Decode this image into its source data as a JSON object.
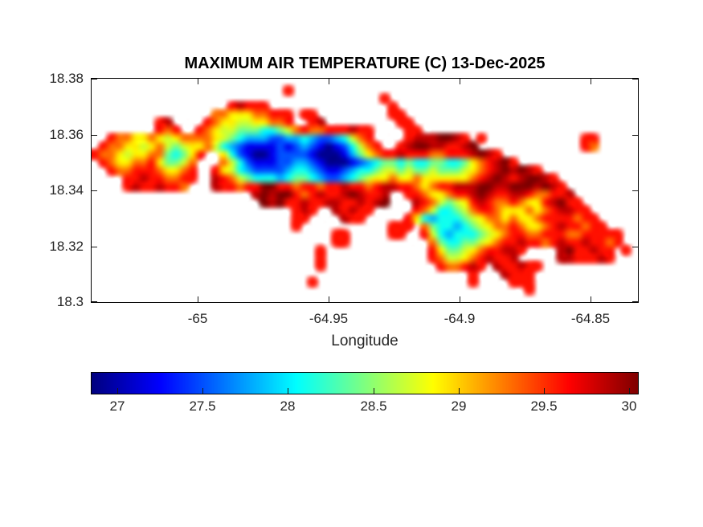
{
  "figure": {
    "background": "#ffffff",
    "box_color": "#000000",
    "tick_color": "#1a1a1a",
    "label_color": "#262626"
  },
  "chart_data": {
    "type": "heatmap",
    "title": "MAXIMUM AIR TEMPERATURE (C) 13-Dec-2025",
    "xlabel": "Longitude",
    "ylabel": "",
    "xlim": [
      -65.0405,
      -64.8319
    ],
    "ylim": [
      18.3,
      18.38
    ],
    "xticks": {
      "values": [
        -65,
        -64.95,
        -64.9,
        -64.85
      ],
      "labels": [
        "-65",
        "-64.95",
        "-64.9",
        "-64.85"
      ]
    },
    "yticks": {
      "values": [
        18.38,
        18.36,
        18.34,
        18.32,
        18.3
      ],
      "labels": [
        "18.38",
        "18.36",
        "18.34",
        "18.32",
        "18.3"
      ]
    },
    "grid_lines": false,
    "colormap": "jet",
    "caxis": [
      26.85,
      30.05
    ],
    "units": "C",
    "colorbar": {
      "orientation": "horizontal",
      "tick_values": [
        27,
        27.5,
        28,
        28.5,
        29,
        29.5,
        30
      ],
      "tick_labels": [
        "27",
        "27.5",
        "28",
        "28.5",
        "29",
        "29.5",
        "30"
      ]
    },
    "grid_cols": 68,
    "grid_rows": 28,
    "ocean_char": ".",
    "value_key": {
      "0": 26.9,
      "1": 27.2,
      "2": 27.5,
      "3": 27.8,
      "4": 28.1,
      "5": 28.4,
      "6": 28.7,
      "7": 28.9,
      "8": 29.3,
      "9": 29.6,
      "A": 29.85,
      "B": 30.05
    },
    "grid_segments": [
      [],
      [
        [
          24,
          "9"
        ]
      ],
      [
        [
          36,
          "9"
        ]
      ],
      [
        [
          17,
          "9A999"
        ],
        [
          37,
          "9"
        ]
      ],
      [
        [
          15,
          "8877788999"
        ],
        [
          26,
          "99"
        ],
        [
          37,
          "99"
        ]
      ],
      [
        [
          8,
          "9A"
        ],
        [
          14,
          "98776677889"
        ],
        [
          27,
          "9A"
        ],
        [
          38,
          "99"
        ]
      ],
      [
        [
          8,
          "989"
        ],
        [
          13,
          "9876655544568988999A99"
        ],
        [
          39,
          "99"
        ]
      ],
      [
        [
          2,
          "988778767888876543332233432234689"
        ],
        [
          39,
          "9AAABBA9"
        ],
        [
          48,
          "9"
        ],
        [
          61,
          "99"
        ]
      ],
      [
        [
          1,
          "98877678656778643211112123210124689"
        ],
        [
          38,
          "9ABBAA99AB"
        ],
        [
          61,
          "98"
        ]
      ],
      [
        [
          0,
          "98876778854579"
        ],
        [
          16,
          "7421001222210001357899A99988999ABA9"
        ]
      ],
      [
        [
          1,
          "987788975568"
        ],
        [
          16,
          "8642111223321000123455454455445789AB9"
        ]
      ],
      [
        [
          2,
          "98899987789"
        ],
        [
          15,
          "97643222234432112344566565565556789ABABA9"
        ]
      ],
      [
        [
          4,
          "99A998899"
        ],
        [
          15,
          "A986544434554322345677877877777789ABA9ABBA9"
        ]
      ],
      [
        [
          4,
          "9A99A998"
        ],
        [
          15,
          "A99899BB99899899A9989AA9987899AAABBAABBBABA9"
        ]
      ],
      [
        [
          20,
          "ABABB989A99ABA99A"
        ],
        [
          39,
          "99877899ABA99AA98899A"
        ]
      ],
      [
        [
          21,
          "BAB99A99AA99A9AB"
        ],
        [
          40,
          "A9865679A98898779AB99"
        ]
      ],
      [
        [
          25,
          "9A9"
        ],
        [
          30,
          "A9A99"
        ],
        [
          40,
          "986445689987778789AA99"
        ]
      ],
      [
        [
          25,
          "99"
        ],
        [
          31,
          "A99"
        ],
        [
          39,
          "974344456788787789999899"
        ]
      ],
      [
        [
          25,
          "9"
        ],
        [
          37,
          "999"
        ],
        [
          41,
          "85443456788987789A99899"
        ]
      ],
      [
        [
          30,
          "99"
        ],
        [
          37,
          "99"
        ],
        [
          41,
          "9643444567899889998899999"
        ]
      ],
      [
        [
          30,
          "99"
        ],
        [
          42,
          "85445567899A9989A99A9989"
        ]
      ],
      [
        [
          28,
          "9"
        ],
        [
          42,
          "975567899AA9"
        ],
        [
          58,
          "AB99A99"
        ],
        [
          66,
          "9"
        ]
      ],
      [
        [
          28,
          "9"
        ],
        [
          42,
          "9866789A99A"
        ],
        [
          58,
          "AA999A9"
        ]
      ],
      [
        [
          28,
          "9"
        ],
        [
          43,
          "9889A9"
        ],
        [
          50,
          "A99A99"
        ]
      ],
      [
        [
          47,
          "9"
        ],
        [
          51,
          "A999"
        ]
      ],
      [
        [
          27,
          "9"
        ],
        [
          47,
          "9"
        ],
        [
          52,
          "999"
        ]
      ],
      [
        [
          54,
          "9"
        ]
      ],
      []
    ]
  }
}
